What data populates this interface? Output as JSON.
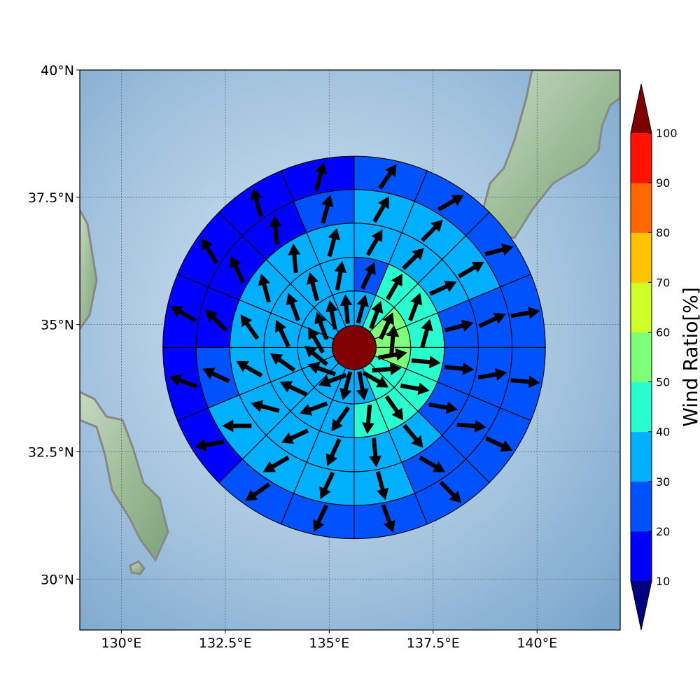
{
  "chart_data": {
    "type": "heatmap",
    "title": "",
    "subtitle": "",
    "map": {
      "lon_range": [
        129.0,
        142.0
      ],
      "lat_range": [
        29.0,
        40.0
      ],
      "x_ticks": [
        {
          "value": 130.0,
          "label": "130°E"
        },
        {
          "value": 132.5,
          "label": "132.5°E"
        },
        {
          "value": 135.0,
          "label": "135°E"
        },
        {
          "value": 137.5,
          "label": "137.5°E"
        },
        {
          "value": 140.0,
          "label": "140°E"
        }
      ],
      "y_ticks": [
        {
          "value": 30.0,
          "label": "30°N"
        },
        {
          "value": 32.5,
          "label": "32.5°N"
        },
        {
          "value": 35.0,
          "label": "35°N"
        },
        {
          "value": 37.5,
          "label": "37.5°N"
        },
        {
          "value": 40.0,
          "label": "40°N"
        }
      ],
      "grid": true,
      "center_lon": 135.6,
      "center_lat": 34.55,
      "ring_radius_deg": [
        0.53,
        1.36,
        2.17,
        2.99,
        3.8,
        4.6
      ]
    },
    "center_value": 100,
    "sectors_per_ring": 16,
    "sector_order": "clockwise from north",
    "ring_values": [
      [
        30,
        45,
        55,
        55,
        55,
        45,
        45,
        30,
        30,
        30,
        30,
        30,
        30,
        30,
        30,
        30
      ],
      [
        25,
        45,
        45,
        45,
        45,
        45,
        45,
        45,
        30,
        30,
        30,
        30,
        30,
        30,
        30,
        30
      ],
      [
        30,
        35,
        35,
        25,
        25,
        25,
        30,
        30,
        30,
        30,
        30,
        30,
        30,
        30,
        30,
        30
      ],
      [
        30,
        30,
        30,
        25,
        25,
        25,
        25,
        30,
        30,
        30,
        30,
        25,
        15,
        15,
        15,
        25
      ],
      [
        25,
        25,
        25,
        25,
        25,
        25,
        25,
        25,
        25,
        25,
        15,
        15,
        15,
        15,
        15,
        15
      ]
    ],
    "arrow_directions_deg": [
      [
        15,
        20,
        25,
        5,
        80,
        85,
        120,
        170,
        195,
        250,
        290,
        310,
        330,
        340,
        350,
        355
      ],
      [
        25,
        30,
        20,
        15,
        95,
        100,
        145,
        185,
        215,
        250,
        295,
        305,
        335,
        340,
        345,
        10
      ],
      [
        30,
        45,
        65,
        75,
        95,
        100,
        140,
        175,
        205,
        245,
        285,
        300,
        325,
        345,
        355,
        15
      ],
      [
        30,
        45,
        60,
        65,
        80,
        95,
        120,
        165,
        205,
        240,
        270,
        295,
        315,
        335,
        355,
        15
      ],
      [
        35,
        60,
        75,
        80,
        95,
        115,
        135,
        160,
        205,
        235,
        260,
        290,
        300,
        330,
        345,
        15
      ]
    ],
    "colorbar": {
      "label": "Wind Ratio[%]",
      "ticks": [
        "10",
        "20",
        "30",
        "40",
        "50",
        "60",
        "70",
        "80",
        "90",
        "100"
      ],
      "levels": [
        10,
        20,
        30,
        40,
        50,
        60,
        70,
        80,
        90,
        100
      ],
      "extend": "both",
      "colors": {
        "under": "#00007f",
        "bins": [
          "#0000ff",
          "#0051ff",
          "#00b0ff",
          "#29ffce",
          "#7dff7a",
          "#ceff29",
          "#ffc400",
          "#ff6800",
          "#ff1300"
        ],
        "over": "#7f0000"
      }
    }
  }
}
